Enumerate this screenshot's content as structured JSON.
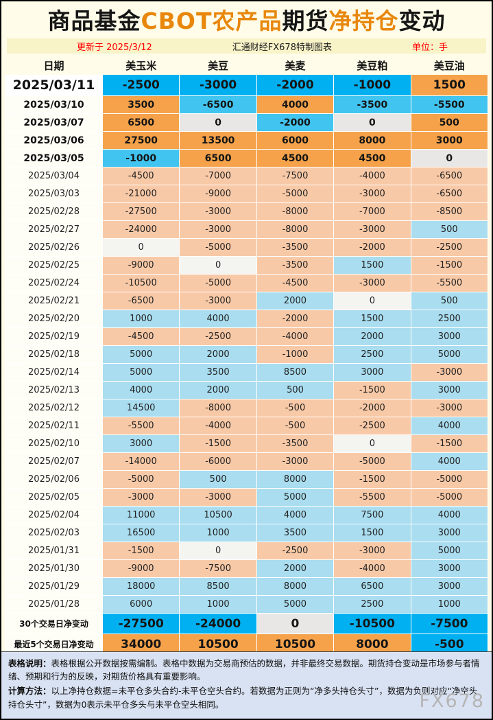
{
  "title": {
    "part1": "商品基金",
    "part2": "CBOT农产品",
    "part3": "期货",
    "part4": "净持仓",
    "part5": "变动"
  },
  "meta": {
    "updated": "更新于 2025/3/12",
    "source": "汇通财经FX678特制图表",
    "unit": "单位：手"
  },
  "chart_data": {
    "type": "table",
    "columns": [
      "日期",
      "美玉米",
      "美豆",
      "美麦",
      "美豆粕",
      "美豆油"
    ],
    "rows": [
      {
        "date": "2025/03/11",
        "values": [
          -2500,
          -3000,
          -2000,
          -1000,
          1500
        ]
      },
      {
        "date": "2025/03/10",
        "values": [
          3500,
          -6500,
          4000,
          -3500,
          -5500
        ]
      },
      {
        "date": "2025/03/07",
        "values": [
          6500,
          0,
          -2000,
          0,
          500
        ]
      },
      {
        "date": "2025/03/06",
        "values": [
          27500,
          13500,
          6000,
          8000,
          3000
        ]
      },
      {
        "date": "2025/03/05",
        "values": [
          -1000,
          6500,
          4500,
          4500,
          0
        ]
      },
      {
        "date": "2025/03/04",
        "values": [
          -4500,
          -7000,
          -7500,
          -4000,
          -6500
        ]
      },
      {
        "date": "2025/03/03",
        "values": [
          -21000,
          -9000,
          -5000,
          -3000,
          -6500
        ]
      },
      {
        "date": "2025/02/28",
        "values": [
          -27500,
          -3000,
          -8000,
          -7000,
          -8500
        ]
      },
      {
        "date": "2025/02/27",
        "values": [
          -24000,
          -3000,
          -8000,
          -3000,
          500
        ]
      },
      {
        "date": "2025/02/26",
        "values": [
          0,
          -5000,
          -3500,
          -2000,
          -2500
        ]
      },
      {
        "date": "2025/02/25",
        "values": [
          -9000,
          0,
          -3500,
          1500,
          -1500
        ]
      },
      {
        "date": "2025/02/24",
        "values": [
          -10500,
          -5000,
          -4500,
          -3000,
          -5500
        ]
      },
      {
        "date": "2025/02/21",
        "values": [
          -6500,
          -3000,
          2000,
          0,
          500
        ]
      },
      {
        "date": "2025/02/20",
        "values": [
          1000,
          4000,
          -2000,
          1500,
          2500
        ]
      },
      {
        "date": "2025/02/19",
        "values": [
          -4500,
          -2500,
          -4000,
          2000,
          3000
        ]
      },
      {
        "date": "2025/02/18",
        "values": [
          5000,
          2000,
          -1000,
          2500,
          5000
        ]
      },
      {
        "date": "2025/02/14",
        "values": [
          5000,
          3500,
          8500,
          3000,
          -3000
        ]
      },
      {
        "date": "2025/02/13",
        "values": [
          4000,
          2000,
          500,
          -1500,
          3000
        ]
      },
      {
        "date": "2025/02/12",
        "values": [
          14500,
          -8000,
          -500,
          -2000,
          -3000
        ]
      },
      {
        "date": "2025/02/11",
        "values": [
          -5500,
          -4000,
          -500,
          -2500,
          4000
        ]
      },
      {
        "date": "2025/02/10",
        "values": [
          3000,
          -1500,
          -3500,
          0,
          -1500
        ]
      },
      {
        "date": "2025/02/07",
        "values": [
          -14000,
          -6000,
          -3000,
          -5000,
          4000
        ]
      },
      {
        "date": "2025/02/06",
        "values": [
          -5000,
          500,
          8000,
          -1500,
          -5000
        ]
      },
      {
        "date": "2025/02/05",
        "values": [
          -3000,
          -3000,
          5000,
          -5500,
          -5000
        ]
      },
      {
        "date": "2025/02/04",
        "values": [
          11000,
          10500,
          4000,
          7500,
          4000
        ]
      },
      {
        "date": "2025/02/03",
        "values": [
          16500,
          1000,
          3500,
          1500,
          3000
        ]
      },
      {
        "date": "2025/01/31",
        "values": [
          -1500,
          0,
          -2500,
          -3000,
          5000
        ]
      },
      {
        "date": "2025/01/30",
        "values": [
          -9000,
          -7500,
          2000,
          -4000,
          3000
        ]
      },
      {
        "date": "2025/01/29",
        "values": [
          18000,
          8500,
          8000,
          6500,
          3000
        ]
      },
      {
        "date": "2025/01/28",
        "values": [
          6000,
          1000,
          5000,
          2500,
          1000
        ]
      }
    ],
    "summary_30d": {
      "label": "30个交易日净变动",
      "values": [
        -27500,
        -24000,
        0,
        -10500,
        -7500
      ]
    },
    "summary_5d": {
      "label": "最近5个交易日净变动",
      "values": [
        34000,
        10500,
        10500,
        8000,
        -500
      ]
    }
  },
  "footer": {
    "note1_label": "表格说明：",
    "note1": "表格根据公开数据按需编制。表格中数据为交易商预估的数据，并非最终交易数据。期货持仓变动是市场参与者情绪、预期和行为的反映，对期货价格具有重要影响。",
    "note2_label": "计算方法：",
    "note2": "以上净持仓数据=未平仓多头合约-未平仓空头合约。若数据为正则为“净多头持仓头寸”，数据为负则对应“净空头持仓头寸”，数据为0表示未平仓多头与未平仓空头相同。",
    "watermark": "FX678"
  },
  "colors": {
    "title_orange": "#E8870C",
    "red_text": "#FF0000",
    "recent_negative": "#41C4F0",
    "recent_positive": "#F5A24A",
    "summary_blue": "#00B0F0",
    "history_positive": "#A9DDEF",
    "history_negative": "#F8C9A7",
    "footer_bg": "#D9E2F2",
    "page_bg": "#FFFDE9"
  }
}
